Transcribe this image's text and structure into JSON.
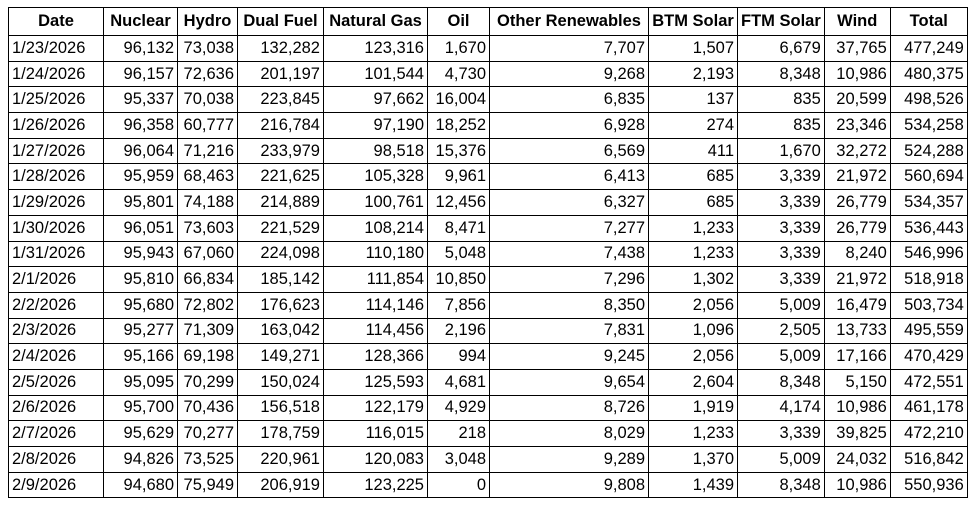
{
  "table": {
    "headers": [
      "Date",
      "Nuclear",
      "Hydro",
      "Dual Fuel",
      "Natural Gas",
      "Oil",
      "Other Renewables",
      "BTM Solar",
      "FTM Solar",
      "Wind",
      "Total"
    ],
    "rows": [
      [
        "1/23/2026",
        "96,132",
        "73,038",
        "132,282",
        "123,316",
        "1,670",
        "7,707",
        "1,507",
        "6,679",
        "37,765",
        "477,249"
      ],
      [
        "1/24/2026",
        "96,157",
        "72,636",
        "201,197",
        "101,544",
        "4,730",
        "9,268",
        "2,193",
        "8,348",
        "10,986",
        "480,375"
      ],
      [
        "1/25/2026",
        "95,337",
        "70,038",
        "223,845",
        "97,662",
        "16,004",
        "6,835",
        "137",
        "835",
        "20,599",
        "498,526"
      ],
      [
        "1/26/2026",
        "96,358",
        "60,777",
        "216,784",
        "97,190",
        "18,252",
        "6,928",
        "274",
        "835",
        "23,346",
        "534,258"
      ],
      [
        "1/27/2026",
        "96,064",
        "71,216",
        "233,979",
        "98,518",
        "15,376",
        "6,569",
        "411",
        "1,670",
        "32,272",
        "524,288"
      ],
      [
        "1/28/2026",
        "95,959",
        "68,463",
        "221,625",
        "105,328",
        "9,961",
        "6,413",
        "685",
        "3,339",
        "21,972",
        "560,694"
      ],
      [
        "1/29/2026",
        "95,801",
        "74,188",
        "214,889",
        "100,761",
        "12,456",
        "6,327",
        "685",
        "3,339",
        "26,779",
        "534,357"
      ],
      [
        "1/30/2026",
        "96,051",
        "73,603",
        "221,529",
        "108,214",
        "8,471",
        "7,277",
        "1,233",
        "3,339",
        "26,779",
        "536,443"
      ],
      [
        "1/31/2026",
        "95,943",
        "67,060",
        "224,098",
        "110,180",
        "5,048",
        "7,438",
        "1,233",
        "3,339",
        "8,240",
        "546,996"
      ],
      [
        "2/1/2026",
        "95,810",
        "66,834",
        "185,142",
        "111,854",
        "10,850",
        "7,296",
        "1,302",
        "3,339",
        "21,972",
        "518,918"
      ],
      [
        "2/2/2026",
        "95,680",
        "72,802",
        "176,623",
        "114,146",
        "7,856",
        "8,350",
        "2,056",
        "5,009",
        "16,479",
        "503,734"
      ],
      [
        "2/3/2026",
        "95,277",
        "71,309",
        "163,042",
        "114,456",
        "2,196",
        "7,831",
        "1,096",
        "2,505",
        "13,733",
        "495,559"
      ],
      [
        "2/4/2026",
        "95,166",
        "69,198",
        "149,271",
        "128,366",
        "994",
        "9,245",
        "2,056",
        "5,009",
        "17,166",
        "470,429"
      ],
      [
        "2/5/2026",
        "95,095",
        "70,299",
        "150,024",
        "125,593",
        "4,681",
        "9,654",
        "2,604",
        "8,348",
        "5,150",
        "472,551"
      ],
      [
        "2/6/2026",
        "95,700",
        "70,436",
        "156,518",
        "122,179",
        "4,929",
        "8,726",
        "1,919",
        "4,174",
        "10,986",
        "461,178"
      ],
      [
        "2/7/2026",
        "95,629",
        "70,277",
        "178,759",
        "116,015",
        "218",
        "8,029",
        "1,233",
        "3,339",
        "39,825",
        "472,210"
      ],
      [
        "2/8/2026",
        "94,826",
        "73,525",
        "220,961",
        "120,083",
        "3,048",
        "9,289",
        "1,370",
        "5,009",
        "24,032",
        "516,842"
      ],
      [
        "2/9/2026",
        "94,680",
        "75,949",
        "206,919",
        "123,225",
        "0",
        "9,808",
        "1,439",
        "8,348",
        "10,986",
        "550,936"
      ]
    ]
  }
}
